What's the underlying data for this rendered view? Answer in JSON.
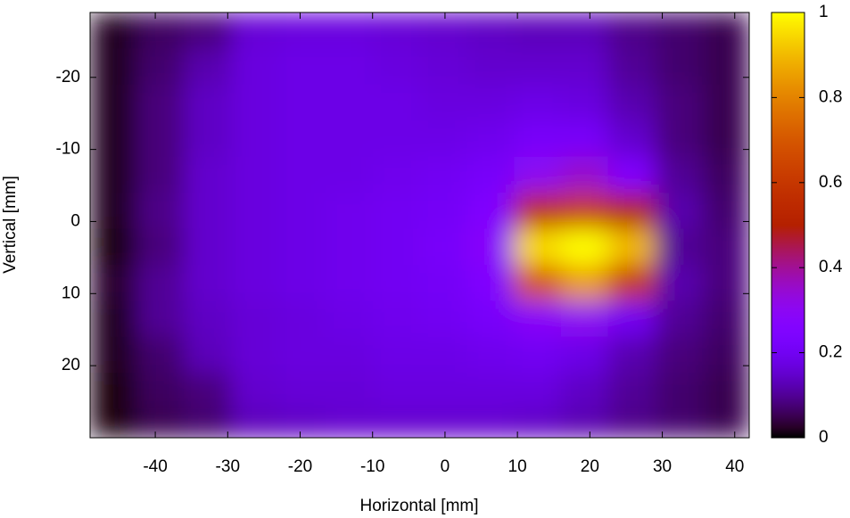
{
  "chart_data": {
    "type": "heatmap",
    "x_label": "Horizontal [mm]",
    "y_label": "Vertical [mm]",
    "xlim": [
      -49,
      42
    ],
    "ylim": [
      -29,
      30
    ],
    "y_reversed": true,
    "xticks": [
      -40,
      -30,
      -20,
      -10,
      0,
      10,
      20,
      30,
      40
    ],
    "yticks": [
      -20,
      -10,
      0,
      10,
      20
    ],
    "colorbar_lim": [
      0,
      1
    ],
    "colorbar_ticks": [
      0,
      0.2,
      0.4,
      0.6,
      0.8,
      1
    ],
    "colormap_rgbformulae": [
      7,
      5,
      15
    ],
    "xbins": [
      -49,
      -42.5,
      -36,
      -29.5,
      -23,
      -16.5,
      -10,
      -3.5,
      3,
      9.5,
      16,
      22.5,
      29,
      35.5,
      42
    ],
    "ybins": [
      -29,
      -24,
      -19,
      -14,
      -9,
      -4,
      1,
      6,
      11,
      16,
      21,
      26,
      30
    ],
    "z": [
      [
        0.02,
        0.06,
        0.08,
        0.16,
        0.17,
        0.17,
        0.16,
        0.15,
        0.14,
        0.13,
        0.13,
        0.09,
        0.07,
        0.05
      ],
      [
        0.02,
        0.07,
        0.12,
        0.17,
        0.18,
        0.18,
        0.17,
        0.16,
        0.15,
        0.15,
        0.15,
        0.1,
        0.07,
        0.05
      ],
      [
        0.02,
        0.08,
        0.14,
        0.17,
        0.18,
        0.18,
        0.18,
        0.17,
        0.17,
        0.18,
        0.17,
        0.12,
        0.08,
        0.05
      ],
      [
        0.02,
        0.08,
        0.14,
        0.17,
        0.18,
        0.18,
        0.18,
        0.18,
        0.19,
        0.22,
        0.22,
        0.15,
        0.08,
        0.05
      ],
      [
        0.02,
        0.08,
        0.15,
        0.17,
        0.18,
        0.18,
        0.19,
        0.2,
        0.22,
        0.3,
        0.35,
        0.25,
        0.1,
        0.06
      ],
      [
        0.02,
        0.09,
        0.15,
        0.17,
        0.18,
        0.19,
        0.2,
        0.21,
        0.25,
        0.55,
        0.6,
        0.5,
        0.12,
        0.07
      ],
      [
        0.01,
        0.08,
        0.15,
        0.17,
        0.18,
        0.19,
        0.2,
        0.22,
        0.28,
        0.95,
        1,
        0.9,
        0.1,
        0.08
      ],
      [
        0.03,
        0.1,
        0.15,
        0.17,
        0.18,
        0.19,
        0.2,
        0.21,
        0.25,
        0.7,
        0.85,
        0.6,
        0.12,
        0.08
      ],
      [
        0.02,
        0.1,
        0.14,
        0.16,
        0.17,
        0.18,
        0.19,
        0.2,
        0.22,
        0.28,
        0.3,
        0.2,
        0.1,
        0.07
      ],
      [
        0.02,
        0.07,
        0.13,
        0.16,
        0.17,
        0.17,
        0.18,
        0.18,
        0.19,
        0.2,
        0.18,
        0.12,
        0.08,
        0.06
      ],
      [
        0.01,
        0.06,
        0.08,
        0.15,
        0.16,
        0.16,
        0.17,
        0.17,
        0.17,
        0.17,
        0.14,
        0.1,
        0.07,
        0.05
      ],
      [
        0.01,
        0.05,
        0.07,
        0.13,
        0.14,
        0.15,
        0.15,
        0.15,
        0.15,
        0.14,
        0.12,
        0.09,
        0.07,
        0.05
      ]
    ]
  }
}
